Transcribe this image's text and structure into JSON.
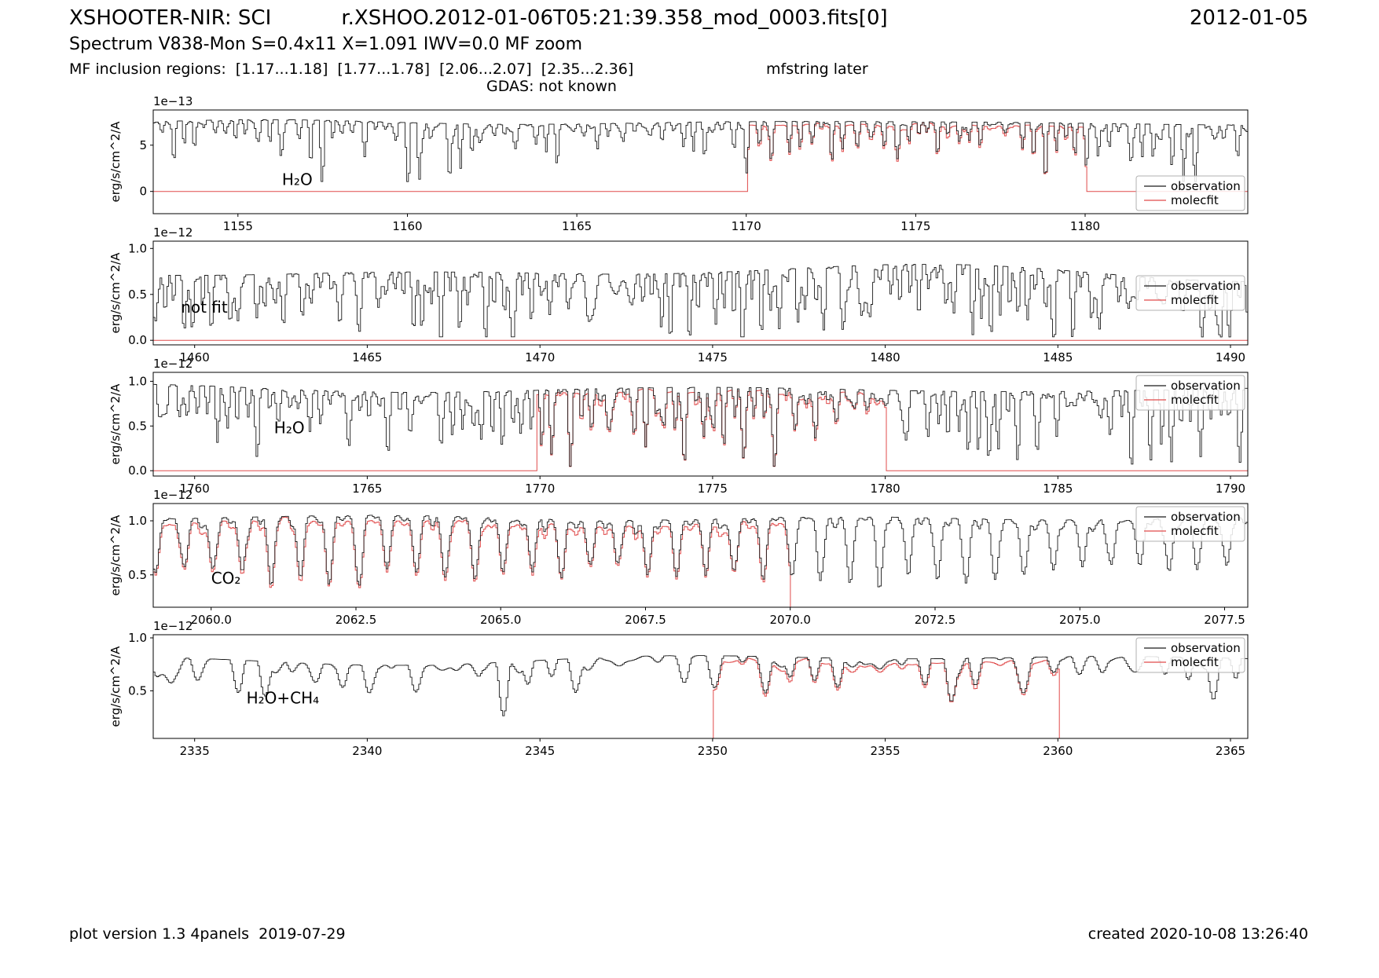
{
  "header": {
    "title_left": "XSHOOTER-NIR: SCI",
    "title_center": "r.XSHOO.2012-01-06T05:21:39.358_mod_0003.fits[0]",
    "title_right": "2012-01-05",
    "subtitle": "Spectrum V838-Mon S=0.4x11 X=1.091 IWV=0.0 MF zoom",
    "inclusion_regions": "MF inclusion regions:  [1.17...1.18]  [1.77...1.78]  [2.06...2.07]  [2.35...2.36]",
    "mfstring_note": "mfstring later",
    "gdas": "GDAS: not known"
  },
  "footer": {
    "left": "plot version 1.3 4panels  2019-07-29",
    "right": "created 2020-10-08 13:26:40"
  },
  "legend": {
    "observation": "observation",
    "molecfit": "molecfit"
  },
  "colors": {
    "observation": "#1a1a1a",
    "molecfit": "#e04b4b",
    "axis": "#000000",
    "legend_border": "#b0b0b0",
    "background": "#ffffff"
  },
  "chart_data": {
    "type": "line",
    "description": "Five stacked telluric spectrum panels: black observation vs red molecfit model; red model is zero outside MF inclusion regions.",
    "ylabel": "erg/s/cm^2/A",
    "panels": [
      {
        "id": "panel-1",
        "offset_label": "1e−13",
        "xlim": [
          1152.5,
          1184.8
        ],
        "ylim": [
          -2.4,
          8.8
        ],
        "xticks": [
          1155,
          1160,
          1165,
          1170,
          1175,
          1180
        ],
        "xtick_labels": [
          "1155",
          "1160",
          "1165",
          "1170",
          "1175",
          "1180"
        ],
        "yticks": [
          0,
          5
        ],
        "ytick_labels": [
          "0",
          "5"
        ],
        "annotation": {
          "text": "H₂O",
          "x": 1156.3,
          "y": 0.7
        },
        "legend_loc": "lower right",
        "fit_regions": [
          [
            1170,
            1180
          ]
        ],
        "zero_line_visible": true,
        "synth": {
          "seed": 11,
          "n": 640,
          "top": 7.8,
          "bottom": 1.0,
          "cont_var": 0.1,
          "fmin": 30,
          "fmax": 150,
          "sharp": 1.6,
          "gain": 1.15
        }
      },
      {
        "id": "panel-2",
        "offset_label": "1e−12",
        "xlim": [
          1458.8,
          1490.5
        ],
        "ylim": [
          -0.05,
          1.08
        ],
        "xticks": [
          1460,
          1465,
          1470,
          1475,
          1480,
          1485,
          1490
        ],
        "xtick_labels": [
          "1460",
          "1465",
          "1470",
          "1475",
          "1480",
          "1485",
          "1490"
        ],
        "yticks": [
          0.0,
          0.5,
          1.0
        ],
        "ytick_labels": [
          "0.0",
          "0.5",
          "1.0"
        ],
        "annotation": {
          "text": "not fit",
          "x": 1459.6,
          "y": 0.3
        },
        "legend_loc": "center right",
        "fit_regions": [],
        "zero_line_visible": true,
        "synth": {
          "seed": 22,
          "n": 640,
          "top": 0.85,
          "bottom": 0.03,
          "cont_var": 0.25,
          "fmin": 30,
          "fmax": 150,
          "sharp": 1.1,
          "gain": 1.45
        }
      },
      {
        "id": "panel-3",
        "offset_label": "1e−12",
        "xlim": [
          1758.8,
          1790.5
        ],
        "ylim": [
          -0.06,
          1.1
        ],
        "xticks": [
          1760,
          1765,
          1770,
          1775,
          1780,
          1785,
          1790
        ],
        "xtick_labels": [
          "1760",
          "1765",
          "1770",
          "1775",
          "1780",
          "1785",
          "1790"
        ],
        "yticks": [
          0.0,
          0.5,
          1.0
        ],
        "ytick_labels": [
          "0.0",
          "0.5",
          "1.0"
        ],
        "annotation": {
          "text": "H₂O",
          "x": 1762.3,
          "y": 0.42
        },
        "legend_loc": "upper right",
        "fit_regions": [
          [
            1769.9,
            1780
          ]
        ],
        "zero_line_visible": true,
        "synth": {
          "seed": 33,
          "n": 640,
          "top": 1.0,
          "bottom": 0.04,
          "cont_var": 0.18,
          "fmin": 25,
          "fmax": 130,
          "sharp": 1.25,
          "gain": 1.25
        }
      },
      {
        "id": "panel-4",
        "offset_label": "1e−12",
        "xlim": [
          2059.0,
          2077.9
        ],
        "ylim": [
          0.2,
          1.16
        ],
        "xticks": [
          2060.0,
          2062.5,
          2065.0,
          2067.5,
          2070.0,
          2072.5,
          2075.0,
          2077.5
        ],
        "xtick_labels": [
          "2060.0",
          "2062.5",
          "2065.0",
          "2067.5",
          "2070.0",
          "2072.5",
          "2075.0",
          "2077.5"
        ],
        "yticks": [
          0.5,
          1.0
        ],
        "ytick_labels": [
          "0.5",
          "1.0"
        ],
        "annotation": {
          "text": "CO₂",
          "x": 2060.0,
          "y": 0.42
        },
        "legend_loc": "upper right",
        "fit_regions": [
          [
            2059.0,
            2070
          ]
        ],
        "zero_line_visible": false,
        "synth": {
          "seed": 44,
          "n": 640,
          "top": 1.06,
          "bottom": 0.3,
          "cont_var": 0.06,
          "fmin": 25,
          "fmax": 110,
          "sharp": 1.3,
          "gain": 0.9,
          "period": 0.5,
          "per_pow": 4
        }
      },
      {
        "id": "panel-5",
        "offset_label": "1e−12",
        "xlim": [
          2333.8,
          2365.5
        ],
        "ylim": [
          0.05,
          1.03
        ],
        "xticks": [
          2335,
          2340,
          2345,
          2350,
          2355,
          2360,
          2365
        ],
        "xtick_labels": [
          "2335",
          "2340",
          "2345",
          "2350",
          "2355",
          "2360",
          "2365"
        ],
        "yticks": [
          0.5,
          1.0
        ],
        "ytick_labels": [
          "0.5",
          "1.0"
        ],
        "annotation": {
          "text": "H₂O+CH₄",
          "x": 2336.5,
          "y": 0.38
        },
        "legend_loc": "upper right",
        "fit_regions": [
          [
            2350,
            2360
          ]
        ],
        "zero_line_visible": false,
        "synth": {
          "seed": 55,
          "n": 640,
          "top": 0.9,
          "bottom": 0.18,
          "cont_var": 0.22,
          "fmin": 12,
          "fmax": 70,
          "sharp": 1.5,
          "gain": 1.0
        }
      }
    ]
  }
}
